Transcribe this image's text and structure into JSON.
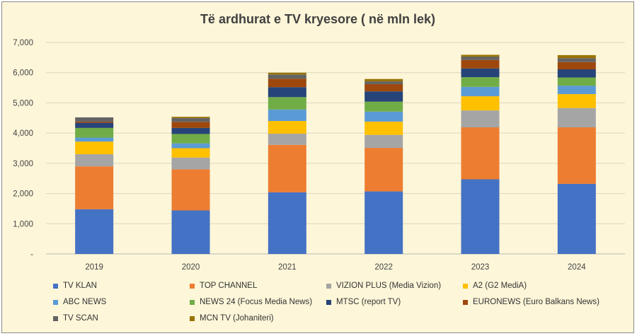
{
  "chart_data": {
    "type": "bar",
    "stacked": true,
    "title": "Të ardhurat e TV kryesore ( në mln lek)",
    "xlabel": "",
    "ylabel": "",
    "categories": [
      "2019",
      "2020",
      "2021",
      "2022",
      "2023",
      "2024"
    ],
    "ylim": [
      0,
      7000
    ],
    "yticks": [
      {
        "value": 0,
        "label": "-"
      },
      {
        "value": 1000,
        "label": "1,000"
      },
      {
        "value": 2000,
        "label": "2,000"
      },
      {
        "value": 3000,
        "label": "3,000"
      },
      {
        "value": 4000,
        "label": "4,000"
      },
      {
        "value": 5000,
        "label": "5,000"
      },
      {
        "value": 6000,
        "label": "6,000"
      },
      {
        "value": 7000,
        "label": "7,000"
      }
    ],
    "grid": true,
    "legend_position": "bottom",
    "series": [
      {
        "name": "TV KLAN",
        "color": "#4472c4",
        "values": [
          1480,
          1440,
          2040,
          2070,
          2470,
          2320
        ]
      },
      {
        "name": "TOP CHANNEL",
        "color": "#ed7d31",
        "values": [
          1420,
          1360,
          1570,
          1440,
          1720,
          1870
        ]
      },
      {
        "name": "VIZION PLUS (Media Vizion)",
        "color": "#a5a5a5",
        "values": [
          400,
          390,
          370,
          430,
          560,
          640
        ]
      },
      {
        "name": "A2 (G2 MediA)",
        "color": "#ffc000",
        "values": [
          420,
          310,
          420,
          440,
          470,
          460
        ]
      },
      {
        "name": "ABC NEWS",
        "color": "#5b9bd5",
        "values": [
          130,
          160,
          380,
          330,
          310,
          280
        ]
      },
      {
        "name": "NEWS 24 (Focus Media News)",
        "color": "#70ad47",
        "values": [
          320,
          310,
          410,
          330,
          320,
          270
        ]
      },
      {
        "name": "MTSC (report TV)",
        "color": "#264478",
        "values": [
          170,
          200,
          330,
          340,
          290,
          270
        ]
      },
      {
        "name": "EURONEWS (Euro Balkans News)",
        "color": "#9e480e",
        "values": [
          40,
          200,
          280,
          240,
          280,
          240
        ]
      },
      {
        "name": "TV SCAN",
        "color": "#636363",
        "values": [
          140,
          130,
          140,
          90,
          110,
          130
        ]
      },
      {
        "name": "MCN TV  (Johaniteri)",
        "color": "#997300",
        "values": [
          0,
          40,
          60,
          80,
          60,
          100
        ]
      }
    ]
  }
}
